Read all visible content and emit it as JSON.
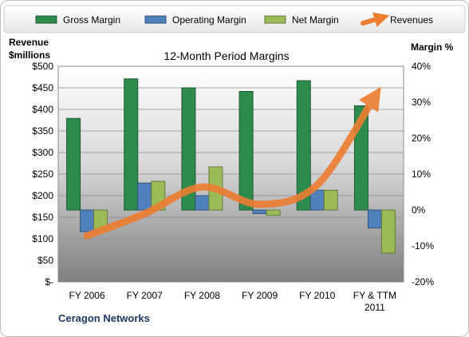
{
  "chart_data": {
    "type": "bar",
    "title": "12-Month Period Margins",
    "company": "Ceragon Networks",
    "left_axis": {
      "label_line1": "Revenue",
      "label_line2": "$millions",
      "ylim": [
        0,
        500
      ],
      "ticks": [
        "$-",
        "$50",
        "$100",
        "$150",
        "$200",
        "$250",
        "$300",
        "$350",
        "$400",
        "$450",
        "$500"
      ]
    },
    "right_axis": {
      "label": "Margin %",
      "ylim": [
        -20,
        40
      ],
      "ticks": [
        "-20%",
        "-10%",
        "0%",
        "10%",
        "20%",
        "30%",
        "40%"
      ]
    },
    "categories": [
      "FY 2006",
      "FY 2007",
      "FY 2008",
      "FY 2009",
      "FY 2010",
      "FY & TTM 2011"
    ],
    "category_labels": [
      [
        "FY 2006"
      ],
      [
        "FY 2007"
      ],
      [
        "FY 2008"
      ],
      [
        "FY 2009"
      ],
      [
        "FY 2010"
      ],
      [
        "FY & TTM",
        "2011"
      ]
    ],
    "series": [
      {
        "name": "Gross Margin",
        "axis": "right",
        "color": "#2e8b4e",
        "values": [
          25.5,
          36.5,
          34,
          33,
          36,
          29
        ]
      },
      {
        "name": "Operating Margin",
        "axis": "right",
        "color": "#4f81bd",
        "values": [
          -6,
          7.5,
          4,
          -1,
          5.5,
          -5
        ]
      },
      {
        "name": "Net Margin",
        "axis": "right",
        "color": "#9bbb59",
        "values": [
          -5.5,
          8,
          12,
          -1.5,
          5.5,
          -12
        ]
      },
      {
        "name": "Revenues",
        "axis": "left",
        "type": "line",
        "color": "#ed7d31",
        "values": [
          107,
          158,
          220,
          180,
          225,
          430
        ]
      }
    ],
    "legend": {
      "placement": "top"
    },
    "grid": true
  }
}
